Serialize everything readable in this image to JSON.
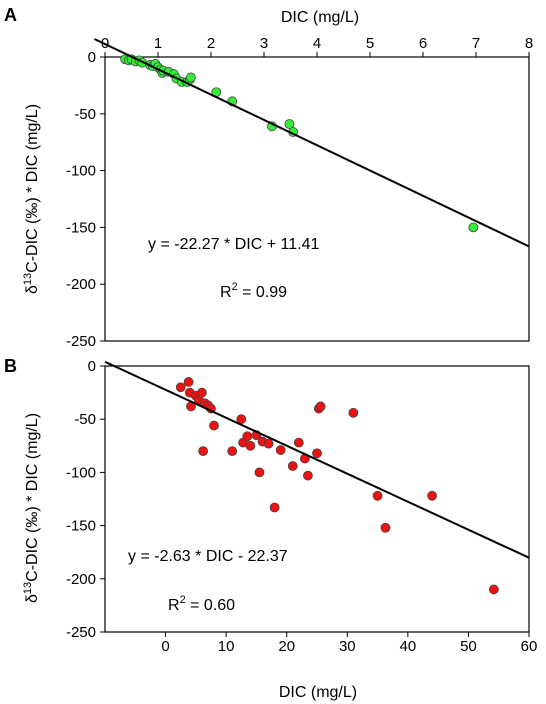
{
  "chart_data": [
    {
      "type": "scatter",
      "panel_label": "A",
      "xlabel": "DIC (mg/L)",
      "x_axis_position": "top",
      "ylabel_prefix": "δ",
      "ylabel_sup": "13",
      "ylabel_main": "C-DIC (‰) * DIC (mg/L)",
      "xlim": [
        0,
        8
      ],
      "ylim": [
        -250,
        0
      ],
      "xticks": [
        0,
        1,
        2,
        3,
        4,
        5,
        6,
        7,
        8
      ],
      "yticks": [
        0,
        -50,
        -100,
        -150,
        -200,
        -250
      ],
      "marker_color": "#33ee33",
      "points": [
        {
          "x": 0.38,
          "y": -2
        },
        {
          "x": 0.45,
          "y": -3
        },
        {
          "x": 0.5,
          "y": -2
        },
        {
          "x": 0.58,
          "y": -4
        },
        {
          "x": 0.65,
          "y": -3
        },
        {
          "x": 0.7,
          "y": -5
        },
        {
          "x": 0.85,
          "y": -7
        },
        {
          "x": 0.9,
          "y": -8
        },
        {
          "x": 0.95,
          "y": -6
        },
        {
          "x": 1.0,
          "y": -9
        },
        {
          "x": 1.05,
          "y": -11
        },
        {
          "x": 1.08,
          "y": -14
        },
        {
          "x": 1.1,
          "y": -12
        },
        {
          "x": 1.2,
          "y": -13
        },
        {
          "x": 1.3,
          "y": -15
        },
        {
          "x": 1.35,
          "y": -19
        },
        {
          "x": 1.45,
          "y": -22
        },
        {
          "x": 1.55,
          "y": -22
        },
        {
          "x": 1.6,
          "y": -20
        },
        {
          "x": 1.62,
          "y": -18
        },
        {
          "x": 2.1,
          "y": -31
        },
        {
          "x": 2.4,
          "y": -39
        },
        {
          "x": 3.15,
          "y": -61
        },
        {
          "x": 3.48,
          "y": -59
        },
        {
          "x": 3.55,
          "y": -66
        },
        {
          "x": 6.95,
          "y": -150
        }
      ],
      "fit": {
        "slope": -22.27,
        "intercept": 11.41,
        "x_range": [
          -0.2,
          8
        ]
      },
      "equation": "y = -22.27 * DIC + 11.41",
      "r2_label": "R",
      "r2_sup": "2",
      "r2_value": " = 0.99"
    },
    {
      "type": "scatter",
      "panel_label": "B",
      "xlabel": "DIC (mg/L)",
      "x_axis_position": "bottom",
      "ylabel_prefix": "δ",
      "ylabel_sup": "13",
      "ylabel_main": "C-DIC (‰) * DIC (mg/L)",
      "xlim": [
        -10,
        60
      ],
      "ylim": [
        -250,
        0
      ],
      "xticks": [
        0,
        10,
        20,
        30,
        40,
        50,
        60
      ],
      "yticks": [
        0,
        -50,
        -100,
        -150,
        -200,
        -250
      ],
      "marker_color": "#ee1111",
      "points": [
        {
          "x": 2.5,
          "y": -20
        },
        {
          "x": 3.8,
          "y": -15
        },
        {
          "x": 4,
          "y": -25
        },
        {
          "x": 4.2,
          "y": -38
        },
        {
          "x": 5,
          "y": -28
        },
        {
          "x": 5.5,
          "y": -32
        },
        {
          "x": 6,
          "y": -25
        },
        {
          "x": 6.5,
          "y": -35
        },
        {
          "x": 7,
          "y": -37
        },
        {
          "x": 7.5,
          "y": -40
        },
        {
          "x": 8,
          "y": -56
        },
        {
          "x": 6.2,
          "y": -80
        },
        {
          "x": 11,
          "y": -80
        },
        {
          "x": 12.5,
          "y": -50
        },
        {
          "x": 12.8,
          "y": -72
        },
        {
          "x": 13.5,
          "y": -66
        },
        {
          "x": 14,
          "y": -75
        },
        {
          "x": 15,
          "y": -65
        },
        {
          "x": 16,
          "y": -71
        },
        {
          "x": 17,
          "y": -73
        },
        {
          "x": 15.5,
          "y": -100
        },
        {
          "x": 18,
          "y": -133
        },
        {
          "x": 19,
          "y": -79
        },
        {
          "x": 21,
          "y": -94
        },
        {
          "x": 22,
          "y": -72
        },
        {
          "x": 23,
          "y": -87
        },
        {
          "x": 23.5,
          "y": -103
        },
        {
          "x": 25,
          "y": -82
        },
        {
          "x": 25.3,
          "y": -40
        },
        {
          "x": 25.6,
          "y": -38
        },
        {
          "x": 31,
          "y": -44
        },
        {
          "x": 35,
          "y": -122
        },
        {
          "x": 36.3,
          "y": -152
        },
        {
          "x": 44,
          "y": -122
        },
        {
          "x": 54.2,
          "y": -210
        }
      ],
      "fit": {
        "slope": -2.63,
        "intercept": -22.37,
        "x_range": [
          -10,
          60
        ]
      },
      "equation": "y = -2.63 * DIC - 22.37",
      "r2_label": "R",
      "r2_sup": "2",
      "r2_value": " = 0.60"
    }
  ]
}
